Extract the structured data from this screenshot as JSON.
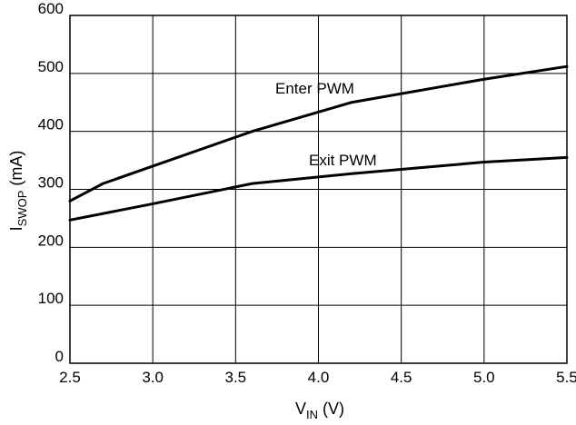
{
  "chart_data": {
    "type": "line",
    "xlabel": {
      "base": "V",
      "sub": "IN",
      "suffix": " (V)"
    },
    "ylabel": {
      "base": "I",
      "sub": "SWOP",
      "suffix": " (mA)"
    },
    "xlim": [
      2.5,
      5.5
    ],
    "ylim": [
      0,
      600
    ],
    "xticks": [
      2.5,
      3.0,
      3.5,
      4.0,
      4.5,
      5.0,
      5.5
    ],
    "xtick_labels": [
      "2.5",
      "3.0",
      "3.5",
      "4.0",
      "4.5",
      "5.0",
      "5.5"
    ],
    "yticks": [
      0,
      100,
      200,
      300,
      400,
      500,
      600
    ],
    "ytick_labels": [
      "0",
      "100",
      "200",
      "300",
      "400",
      "500",
      "600"
    ],
    "grid": true,
    "series": [
      {
        "name": "Enter PWM",
        "x": [
          2.5,
          2.7,
          3.0,
          3.6,
          4.2,
          5.0,
          5.5
        ],
        "y": [
          280,
          310,
          340,
          400,
          450,
          490,
          512
        ]
      },
      {
        "name": "Exit PWM",
        "x": [
          2.5,
          3.0,
          3.6,
          4.2,
          5.0,
          5.5
        ],
        "y": [
          247,
          275,
          310,
          327,
          347,
          355
        ]
      }
    ]
  }
}
